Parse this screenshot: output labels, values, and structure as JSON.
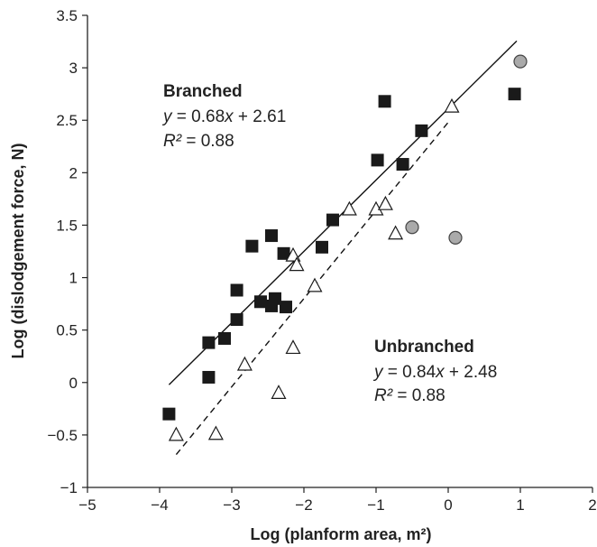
{
  "chart_data": {
    "type": "scatter",
    "xlabel": "Log (planform area, m²)",
    "ylabel": "Log (dislodgement force, N)",
    "xlim": [
      -5,
      2
    ],
    "ylim": [
      -1,
      3.5
    ],
    "xticks": [
      -5,
      -4,
      -3,
      -2,
      -1,
      0,
      1,
      2
    ],
    "yticks": [
      -1,
      -0.5,
      0,
      0.5,
      1,
      1.5,
      2,
      2.5,
      3,
      3.5
    ],
    "grid": false,
    "series": [
      {
        "name": "Branched",
        "marker": "square",
        "color": "#1a1a1a",
        "points": [
          [
            -3.87,
            -0.3
          ],
          [
            -3.32,
            0.05
          ],
          [
            -3.32,
            0.38
          ],
          [
            -3.1,
            0.42
          ],
          [
            -2.93,
            0.6
          ],
          [
            -2.93,
            0.88
          ],
          [
            -2.72,
            1.3
          ],
          [
            -2.6,
            0.77
          ],
          [
            -2.45,
            1.4
          ],
          [
            -2.45,
            0.73
          ],
          [
            -2.4,
            0.8
          ],
          [
            -2.28,
            1.23
          ],
          [
            -2.25,
            0.72
          ],
          [
            -1.75,
            1.29
          ],
          [
            -1.6,
            1.55
          ],
          [
            -0.98,
            2.12
          ],
          [
            -0.88,
            2.68
          ],
          [
            -0.63,
            2.08
          ],
          [
            -0.37,
            2.4
          ],
          [
            0.92,
            2.75
          ]
        ]
      },
      {
        "name": "Unbranched",
        "marker": "triangle-open",
        "color": "#1a1a1a",
        "points": [
          [
            -3.77,
            -0.5
          ],
          [
            -3.22,
            -0.49
          ],
          [
            -2.82,
            0.17
          ],
          [
            -2.35,
            -0.1
          ],
          [
            -2.15,
            1.21
          ],
          [
            -2.1,
            1.12
          ],
          [
            -2.15,
            0.33
          ],
          [
            -1.85,
            0.92
          ],
          [
            -1.37,
            1.65
          ],
          [
            -1.0,
            1.65
          ],
          [
            -0.87,
            1.7
          ],
          [
            -0.73,
            1.42
          ],
          [
            0.05,
            2.63
          ]
        ]
      },
      {
        "marker": "circle-gray",
        "color": "#aaaaaa",
        "points": [
          [
            1.0,
            3.06
          ],
          [
            -0.5,
            1.48
          ],
          [
            0.1,
            1.38
          ]
        ]
      }
    ],
    "fits": [
      {
        "series": "Branched",
        "slope": 0.68,
        "intercept": 2.61,
        "x_range": [
          -3.87,
          0.95
        ],
        "style": "solid"
      },
      {
        "series": "Unbranched",
        "slope": 0.84,
        "intercept": 2.48,
        "x_range": [
          -3.77,
          0.02
        ],
        "style": "dashed"
      }
    ],
    "annotations": [
      {
        "id": "branched",
        "title": "Branched",
        "equation": {
          "y": "y",
          "mid": " = 0.68",
          "x": "x",
          "tail": " + 2.61"
        },
        "r2": {
          "r": "R²",
          "tail": " = 0.88"
        }
      },
      {
        "id": "unbranched",
        "title": "Unbranched",
        "equation": {
          "y": "y",
          "mid": " = 0.84",
          "x": "x",
          "tail": " + 2.48"
        },
        "r2": {
          "r": "R²",
          "tail": " = 0.88"
        }
      }
    ]
  }
}
